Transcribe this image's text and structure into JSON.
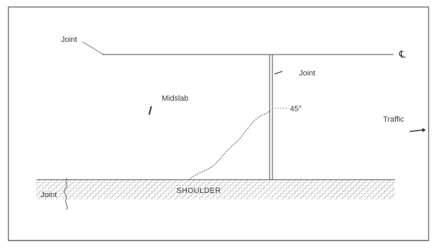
{
  "labels": {
    "joint_top": "Joint",
    "centerline_symbol": "℄",
    "joint_transverse": "Joint",
    "midslab": "Midslab",
    "angle": "45°",
    "traffic": "Traffic",
    "shoulder": "SHOULDER",
    "joint_shoulder": "Joint"
  },
  "colors": {
    "ink": "#3a3a3a",
    "frame": "#555555",
    "hatch": "#777777",
    "background": "#ffffff"
  }
}
